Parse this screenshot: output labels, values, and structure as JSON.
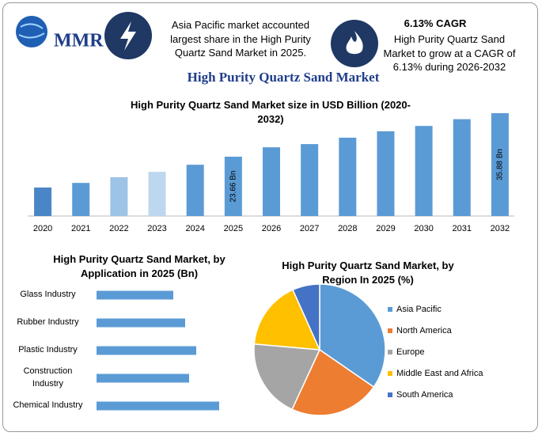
{
  "header": {
    "logo": "MMR",
    "info_1": "Asia Pacific market accounted largest share in the High Purity Quartz Sand Market in 2025.",
    "info_2_title": "6.13% CAGR",
    "info_2": "High Purity Quartz Sand Market to grow at a CAGR of 6.13% during 2026-2032",
    "title": "High Purity Quartz Sand Market"
  },
  "chart_data": [
    {
      "type": "bar",
      "title": "High Purity Quartz Sand Market size in USD Billion (2020-2032)",
      "categories": [
        "2020",
        "2021",
        "2022",
        "2023",
        "2024",
        "2025",
        "2026",
        "2027",
        "2028",
        "2029",
        "2030",
        "2031",
        "2032"
      ],
      "values": [
        15.0,
        16.3,
        17.9,
        19.4,
        21.4,
        23.66,
        26.3,
        27.2,
        29.0,
        30.8,
        32.3,
        34.2,
        35.88
      ],
      "value_labels": [
        null,
        null,
        null,
        null,
        null,
        "23.66 Bn",
        null,
        null,
        null,
        null,
        null,
        null,
        "35.88 Bn"
      ],
      "colors": [
        "#4a86c5",
        "#5b9bd5",
        "#9dc3e6",
        "#bdd7ee",
        "#5b9bd5",
        "#5b9bd5",
        "#5b9bd5",
        "#5b9bd5",
        "#5b9bd5",
        "#5b9bd5",
        "#5b9bd5",
        "#5b9bd5",
        "#5b9bd5"
      ],
      "ylim": [
        7,
        37
      ]
    },
    {
      "type": "hbar",
      "title": "High Purity Quartz Sand Market, by Application in 2025 (Bn)",
      "categories": [
        "Glass Industry",
        "Rubber Industry",
        "Plastic Industry",
        "Construction Industry",
        "Chemical Industry"
      ],
      "values": [
        0.97,
        1.12,
        1.26,
        1.17,
        1.55
      ],
      "color": "#5b9bd5",
      "xlim": [
        0,
        1.8
      ]
    },
    {
      "type": "pie",
      "title": "High Purity Quartz Sand Market, by Region In 2025 (%)",
      "categories": [
        "Asia Pacific",
        "North America",
        "Europe",
        "Middle East and Africa",
        "South America"
      ],
      "values": [
        34.6,
        22.3,
        19.5,
        16.9,
        6.7
      ],
      "colors": [
        "#5b9bd5",
        "#ed7d31",
        "#a5a5a5",
        "#ffc000",
        "#4472c4"
      ],
      "legend": "right"
    }
  ]
}
